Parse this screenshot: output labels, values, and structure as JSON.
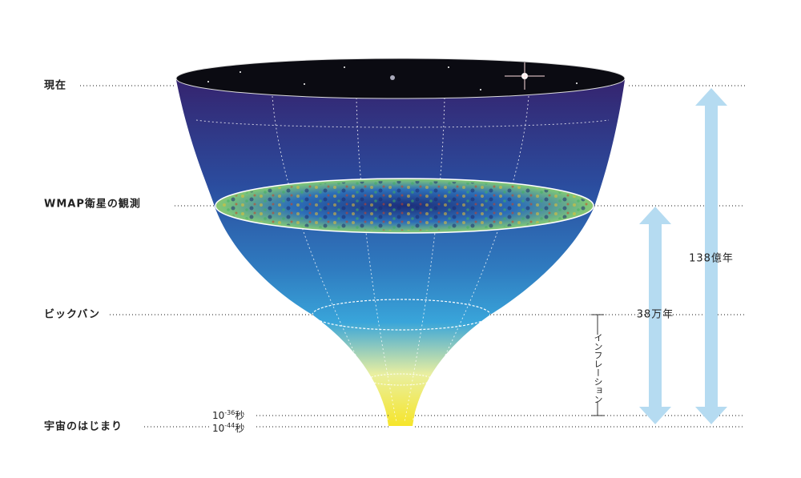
{
  "labels": {
    "now": "現在",
    "wmap": "WMAP衛星の観測",
    "big_bang": "ビックバン",
    "beginning": "宇宙のはじまり"
  },
  "times": [
    {
      "base": "10",
      "exp": "-36",
      "unit": "秒"
    },
    {
      "base": "10",
      "exp": "-44",
      "unit": "秒"
    }
  ],
  "spans": {
    "age": "138億年",
    "cmb": "38万年",
    "inflation": "インフレーション"
  }
}
